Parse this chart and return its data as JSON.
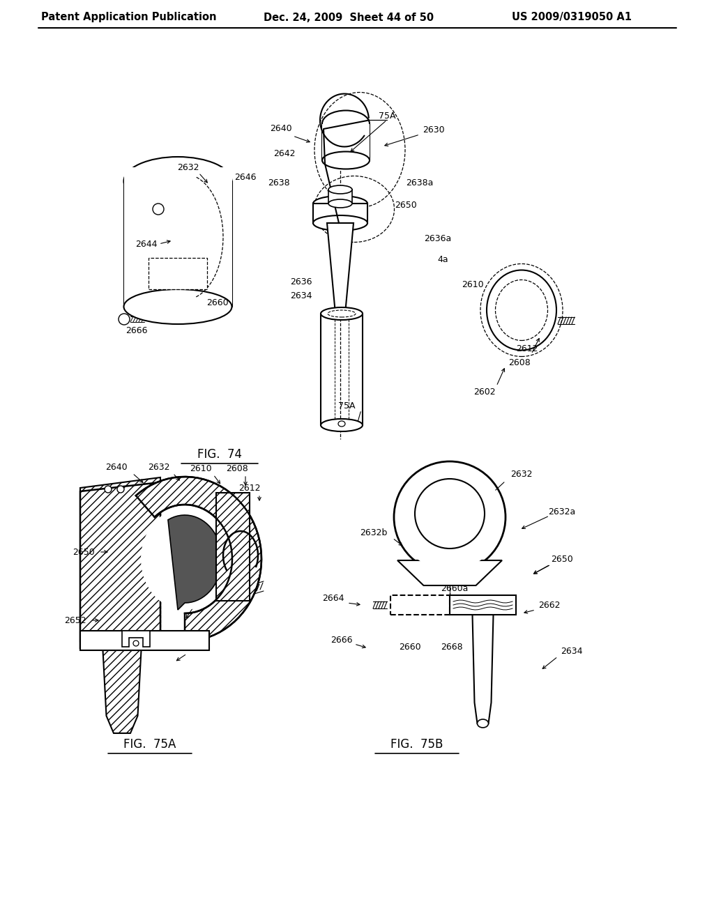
{
  "background_color": "#ffffff",
  "header": {
    "left": "Patent Application Publication",
    "center": "Dec. 24, 2009  Sheet 44 of 50",
    "right": "US 2009/0319050 A1",
    "fontsize": 10.5
  },
  "label_fontsize": 9,
  "title_fontsize": 12
}
